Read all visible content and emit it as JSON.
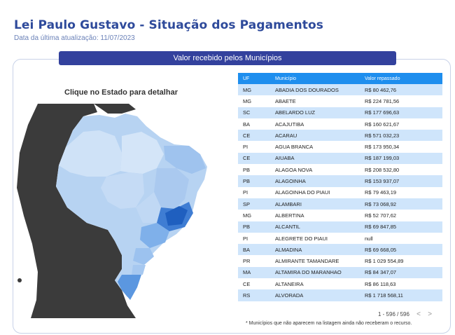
{
  "header": {
    "title": "Lei Paulo Gustavo  - Situação dos Pagamentos",
    "subtitle": "Data da última atualização: 11/07/2023"
  },
  "section": {
    "title": "Valor recebido pelos Municípios"
  },
  "map": {
    "caption": "Clique no Estado para detalhar"
  },
  "table": {
    "headers": [
      "UF",
      "Município  ",
      "Valor repassado"
    ],
    "rows": [
      [
        "MG",
        "ABADIA DOS DOURADOS",
        "R$ 80 462,76"
      ],
      [
        "MG",
        "ABAETE",
        "R$ 224 781,56"
      ],
      [
        "SC",
        "ABELARDO LUZ",
        "R$ 177 696,63"
      ],
      [
        "BA",
        "ACAJUTIBA",
        "R$ 160 621,67"
      ],
      [
        "CE",
        "ACARAU",
        "R$ 571 032,23"
      ],
      [
        "PI",
        "AGUA BRANCA",
        "R$ 173 950,34"
      ],
      [
        "CE",
        "AIUABA",
        "R$ 187 199,03"
      ],
      [
        "PB",
        "ALAGOA NOVA",
        "R$ 208 532,80"
      ],
      [
        "PB",
        "ALAGOINHA",
        "R$ 153 937,07"
      ],
      [
        "PI",
        "ALAGOINHA DO PIAUI",
        "R$ 79 463,19"
      ],
      [
        "SP",
        "ALAMBARI",
        "R$ 73 068,92"
      ],
      [
        "MG",
        "ALBERTINA",
        "R$ 52 707,62"
      ],
      [
        "PB",
        "ALCANTIL",
        "R$ 69 847,85"
      ],
      [
        "PI",
        "ALEGRETE DO PIAUI",
        "null"
      ],
      [
        "BA",
        "ALMADINA",
        "R$ 69 668,05"
      ],
      [
        "PR",
        "ALMIRANTE TAMANDARE",
        "R$ 1 029 554,89"
      ],
      [
        "MA",
        "ALTAMIRA DO MARANHAO",
        "R$ 84 347,07"
      ],
      [
        "CE",
        "ALTANEIRA",
        "R$ 86 118,63"
      ],
      [
        "RS",
        "ALVORADA",
        "R$ 1 718 568,11"
      ]
    ]
  },
  "pager": {
    "range": "1 - 596 / 596",
    "prev": "<",
    "next": ">"
  },
  "footnote": "* Municípios que não aparecem na listagem ainda não receberam o recurso.",
  "colors": {
    "title": "#2e4a9b",
    "bar": "#33419d",
    "table_header": "#1e8eee",
    "row_alt": "#cfe5fb",
    "map_dark": "#3a3a3a"
  }
}
